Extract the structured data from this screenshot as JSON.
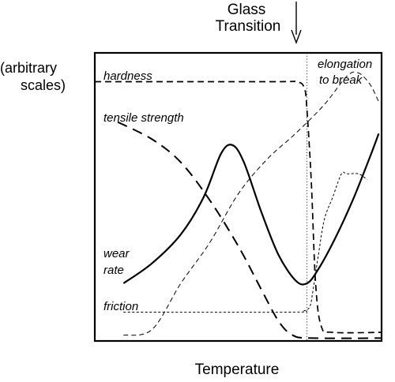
{
  "chart_data": {
    "type": "line",
    "title": "",
    "xlabel": "Temperature",
    "ylabel": "(arbitrary scales)",
    "xlim": [
      0,
      100
    ],
    "ylim": [
      0,
      100
    ],
    "grid": false,
    "legend": "none",
    "annotations": {
      "glass_transition_line1": "Glass",
      "glass_transition_line2": "Transition",
      "glass_transition_x": 74
    },
    "axis": {
      "xlabel": "Temperature",
      "ylabel_line1": "(arbitrary",
      "ylabel_line2": "scales)"
    },
    "series": [
      {
        "name": "hardness",
        "label": "hardness",
        "style": "dashed-medium",
        "points": [
          [
            0,
            90
          ],
          [
            62,
            90
          ],
          [
            70,
            90
          ],
          [
            73,
            88
          ],
          [
            74,
            80
          ],
          [
            75.5,
            55
          ],
          [
            77,
            20
          ],
          [
            79,
            5
          ],
          [
            83,
            3
          ],
          [
            100,
            3
          ]
        ]
      },
      {
        "name": "tensile strength",
        "label": "tensile strength",
        "style": "dashed-long",
        "points": [
          [
            8,
            76
          ],
          [
            20,
            70
          ],
          [
            30,
            62
          ],
          [
            40,
            49
          ],
          [
            50,
            33
          ],
          [
            58,
            18
          ],
          [
            64,
            7
          ],
          [
            69,
            2
          ],
          [
            76,
            1
          ],
          [
            100,
            1
          ]
        ]
      },
      {
        "name": "elongation to break",
        "label1": "elongation",
        "label2": "to break",
        "style": "dashed-thin",
        "points": [
          [
            10,
            2
          ],
          [
            20,
            4
          ],
          [
            30,
            20
          ],
          [
            40,
            34
          ],
          [
            50,
            51
          ],
          [
            60,
            63
          ],
          [
            70,
            72
          ],
          [
            80,
            82
          ],
          [
            88,
            92
          ],
          [
            92,
            93
          ],
          [
            96,
            89
          ],
          [
            99,
            83
          ]
        ]
      },
      {
        "name": "wear rate",
        "label1": "wear",
        "label2": "rate",
        "style": "solid",
        "points": [
          [
            10,
            20
          ],
          [
            20,
            27
          ],
          [
            30,
            37
          ],
          [
            38,
            50
          ],
          [
            44,
            65
          ],
          [
            48,
            68
          ],
          [
            52,
            62
          ],
          [
            58,
            45
          ],
          [
            64,
            30
          ],
          [
            70,
            21
          ],
          [
            74,
            20
          ],
          [
            78,
            25
          ],
          [
            84,
            36
          ],
          [
            90,
            49
          ],
          [
            96,
            64
          ],
          [
            99,
            72
          ]
        ]
      },
      {
        "name": "friction",
        "label": "friction",
        "style": "dotted-fine",
        "points": [
          [
            10,
            10
          ],
          [
            68,
            10
          ],
          [
            73,
            10.5
          ],
          [
            75,
            12
          ],
          [
            76,
            17
          ],
          [
            78,
            30
          ],
          [
            80,
            42
          ],
          [
            83,
            50
          ],
          [
            86,
            58
          ],
          [
            88,
            58
          ],
          [
            92,
            58
          ],
          [
            95,
            56
          ]
        ]
      }
    ]
  },
  "colors": {
    "line": "#000000",
    "background": "#ffffff"
  }
}
